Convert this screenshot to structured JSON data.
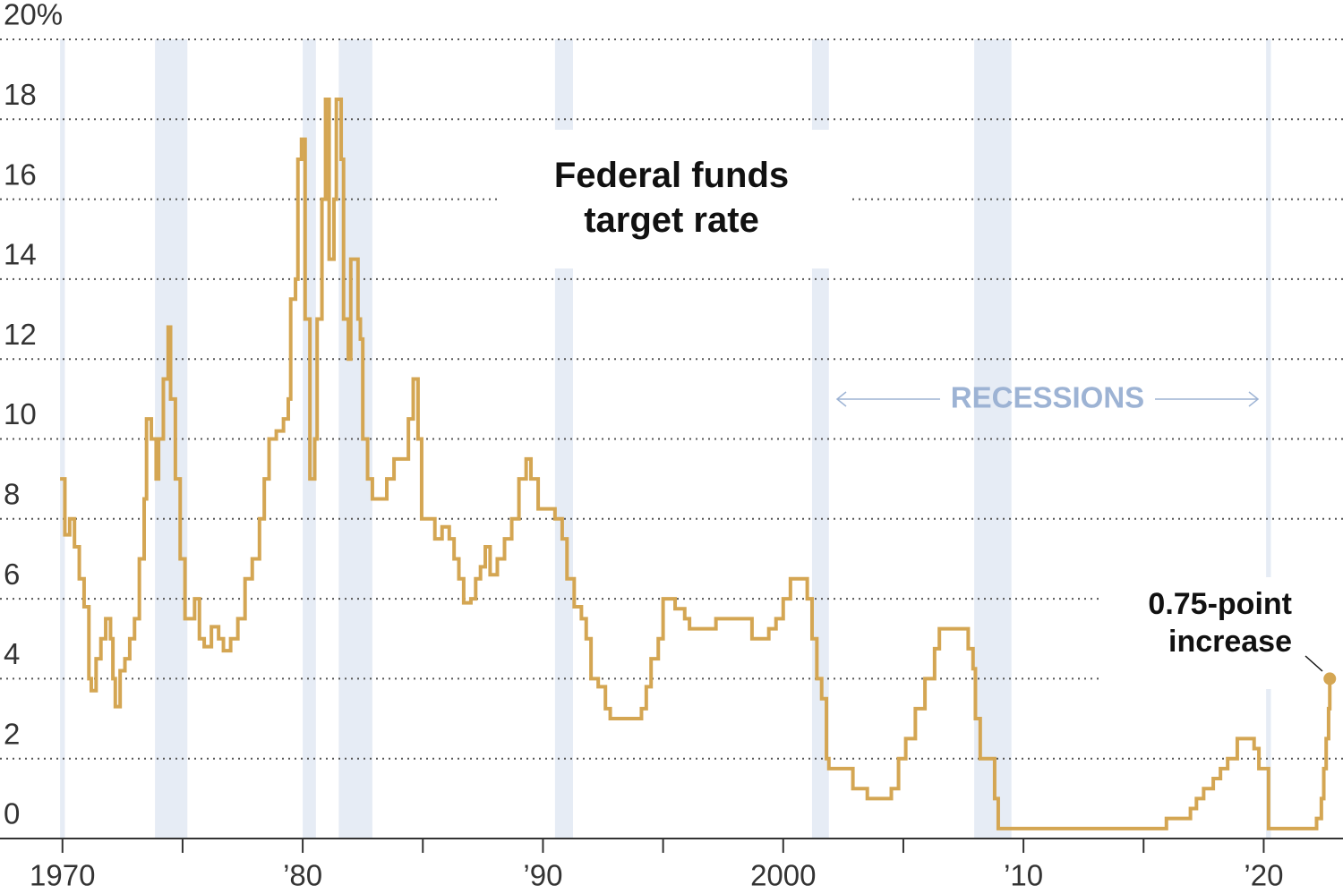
{
  "chart_data": {
    "type": "line",
    "title": "Federal funds target rate",
    "annotation": "0.75-point increase",
    "recession_label": "RECESSIONS",
    "recessions": [
      [
        1969.9,
        1970.1
      ],
      [
        1973.85,
        1975.2
      ],
      [
        1980.0,
        1980.55
      ],
      [
        1981.5,
        1982.9
      ],
      [
        1990.5,
        1991.25
      ],
      [
        2001.2,
        2001.9
      ],
      [
        2007.95,
        2009.5
      ],
      [
        2020.1,
        2020.3
      ]
    ],
    "recession_color": "#e6ecf5",
    "x": [
      1969.9,
      1970.1,
      1970.3,
      1970.5,
      1970.7,
      1970.9,
      1971.1,
      1971.2,
      1971.4,
      1971.6,
      1971.8,
      1972.0,
      1972.1,
      1972.2,
      1972.4,
      1972.6,
      1972.8,
      1973.0,
      1973.2,
      1973.4,
      1973.5,
      1973.7,
      1973.9,
      1974.0,
      1974.2,
      1974.4,
      1974.5,
      1974.7,
      1974.9,
      1975.1,
      1975.3,
      1975.5,
      1975.7,
      1975.9,
      1976.2,
      1976.5,
      1976.7,
      1977.0,
      1977.3,
      1977.6,
      1977.9,
      1978.2,
      1978.4,
      1978.6,
      1978.9,
      1979.2,
      1979.4,
      1979.5,
      1979.7,
      1979.8,
      1979.95,
      1980.1,
      1980.3,
      1980.5,
      1980.6,
      1980.8,
      1980.95,
      1981.1,
      1981.3,
      1981.4,
      1981.6,
      1981.7,
      1981.9,
      1982.0,
      1982.3,
      1982.4,
      1982.5,
      1982.7,
      1982.9,
      1983.2,
      1983.5,
      1983.8,
      1984.1,
      1984.4,
      1984.6,
      1984.8,
      1984.95,
      1985.2,
      1985.5,
      1985.8,
      1986.1,
      1986.3,
      1986.5,
      1986.7,
      1987.0,
      1987.2,
      1987.4,
      1987.6,
      1987.8,
      1988.1,
      1988.4,
      1988.7,
      1989.0,
      1989.3,
      1989.5,
      1989.8,
      1990.5,
      1990.8,
      1991.0,
      1991.3,
      1991.6,
      1991.8,
      1992.0,
      1992.3,
      1992.6,
      1992.8,
      1994.1,
      1994.3,
      1994.5,
      1994.8,
      1995.0,
      1995.5,
      1995.9,
      1996.1,
      1997.2,
      1998.7,
      1999.4,
      1999.7,
      2000.0,
      2000.3,
      2001.0,
      2001.2,
      2001.4,
      2001.6,
      2001.8,
      2001.9,
      2002.9,
      2003.5,
      2004.5,
      2004.8,
      2005.1,
      2005.5,
      2005.9,
      2006.3,
      2006.5,
      2007.7,
      2007.9,
      2008.0,
      2008.2,
      2008.8,
      2008.95,
      2015.95,
      2016.95,
      2017.2,
      2017.5,
      2017.9,
      2018.2,
      2018.5,
      2018.9,
      2019.6,
      2019.8,
      2020.2,
      2022.2,
      2022.4,
      2022.5,
      2022.6,
      2022.7,
      2022.75
    ],
    "series": [
      {
        "name": "Federal funds target rate",
        "color": "#d4a653",
        "values": [
          9.0,
          7.6,
          8.0,
          7.3,
          6.5,
          5.8,
          4.0,
          3.7,
          4.5,
          5.0,
          5.5,
          5.0,
          4.0,
          3.3,
          4.2,
          4.5,
          5.0,
          5.5,
          7.0,
          8.5,
          10.5,
          10.0,
          9.0,
          10.0,
          11.5,
          12.8,
          11.0,
          9.0,
          7.0,
          5.5,
          5.5,
          6.0,
          5.0,
          4.8,
          5.3,
          5.0,
          4.7,
          5.0,
          5.5,
          6.5,
          7.0,
          8.0,
          9.0,
          10.0,
          10.2,
          10.5,
          11.0,
          13.5,
          14.0,
          17.0,
          17.5,
          13.0,
          9.0,
          10.0,
          13.0,
          16.0,
          18.5,
          14.5,
          16.0,
          18.5,
          17.0,
          13.0,
          12.0,
          14.5,
          13.0,
          12.5,
          10.0,
          9.0,
          8.5,
          8.5,
          9.0,
          9.5,
          9.5,
          10.5,
          11.5,
          10.0,
          8.0,
          8.0,
          7.5,
          7.8,
          7.5,
          7.0,
          6.5,
          5.9,
          6.0,
          6.5,
          6.8,
          7.3,
          6.6,
          7.0,
          7.5,
          8.0,
          9.0,
          9.5,
          9.0,
          8.25,
          8.0,
          7.5,
          6.5,
          5.8,
          5.5,
          5.0,
          4.0,
          3.8,
          3.25,
          3.0,
          3.25,
          3.8,
          4.5,
          5.0,
          6.0,
          5.75,
          5.5,
          5.25,
          5.5,
          5.0,
          5.25,
          5.5,
          6.0,
          6.5,
          6.0,
          5.0,
          4.0,
          3.5,
          2.0,
          1.75,
          1.25,
          1.0,
          1.25,
          2.0,
          2.5,
          3.25,
          4.0,
          4.75,
          5.25,
          4.75,
          4.25,
          3.0,
          2.0,
          1.0,
          0.25,
          0.5,
          0.75,
          1.0,
          1.25,
          1.5,
          1.75,
          2.0,
          2.5,
          2.25,
          1.75,
          0.25,
          0.5,
          1.0,
          1.75,
          2.5,
          3.25,
          4.0
        ]
      }
    ],
    "xlim": [
      1967.4,
      2023.3
    ],
    "ylim": [
      0,
      20
    ],
    "xticks": [
      1970,
      {
        "value": 1980,
        "label": "’80"
      },
      {
        "value": 1990,
        "label": "’90"
      },
      2000,
      {
        "value": 2010,
        "label": "’10"
      },
      {
        "value": 2020,
        "label": "’20"
      }
    ],
    "xminor_ticks": [
      1975,
      1985,
      1995,
      2005,
      2015
    ],
    "yticks": [
      0,
      2,
      4,
      6,
      8,
      10,
      12,
      14,
      16,
      18,
      {
        "value": 20,
        "label": "20%"
      }
    ],
    "grid": true
  }
}
